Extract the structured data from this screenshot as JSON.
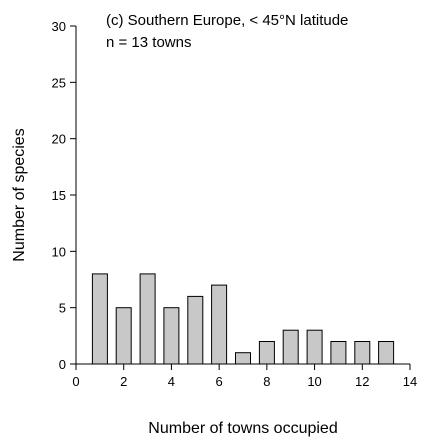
{
  "chart_data": {
    "type": "bar",
    "title": "(c) Southern Europe, < 45°N latitude",
    "subtitle": "n = 13 towns",
    "xlabel": "Number of towns occupied",
    "ylabel": "Number of species",
    "xlim": [
      0,
      14
    ],
    "ylim": [
      0,
      30
    ],
    "xticks": [
      0,
      2,
      4,
      6,
      8,
      10,
      12,
      14
    ],
    "yticks": [
      0,
      5,
      10,
      15,
      20,
      25,
      30
    ],
    "x": [
      1,
      2,
      3,
      4,
      5,
      6,
      7,
      8,
      9,
      10,
      11,
      12,
      13
    ],
    "values": [
      8,
      5,
      8,
      5,
      6,
      7,
      1,
      2,
      3,
      3,
      2,
      2,
      2
    ],
    "grid": false,
    "bar_color": "#c8c8c8"
  }
}
